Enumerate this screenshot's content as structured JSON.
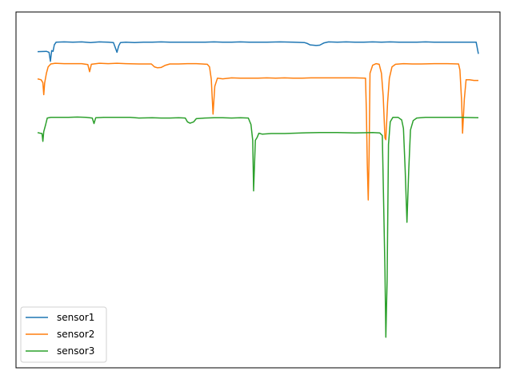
{
  "chart_data": {
    "type": "line",
    "title": "",
    "xlabel": "",
    "ylabel": "",
    "grid": false,
    "axes_visible": false,
    "legend_position": "lower-left",
    "xlim": [
      0,
      1000
    ],
    "ylim": [
      0,
      1000
    ],
    "series": [
      {
        "name": "sensor1",
        "color": "#1f77b4",
        "points": [
          [
            0,
            927
          ],
          [
            20,
            928
          ],
          [
            26,
            925
          ],
          [
            29,
            897
          ],
          [
            32,
            930
          ],
          [
            35,
            928
          ],
          [
            38,
            948
          ],
          [
            42,
            956
          ],
          [
            60,
            957
          ],
          [
            80,
            956
          ],
          [
            100,
            957
          ],
          [
            120,
            955
          ],
          [
            140,
            957
          ],
          [
            160,
            956
          ],
          [
            172,
            955
          ],
          [
            176,
            940
          ],
          [
            180,
            925
          ],
          [
            184,
            945
          ],
          [
            188,
            955
          ],
          [
            200,
            956
          ],
          [
            220,
            955
          ],
          [
            240,
            956
          ],
          [
            260,
            956
          ],
          [
            280,
            957
          ],
          [
            300,
            956
          ],
          [
            320,
            956
          ],
          [
            340,
            956
          ],
          [
            360,
            956
          ],
          [
            380,
            956
          ],
          [
            400,
            957
          ],
          [
            420,
            956
          ],
          [
            440,
            956
          ],
          [
            460,
            957
          ],
          [
            480,
            956
          ],
          [
            500,
            956
          ],
          [
            520,
            956
          ],
          [
            550,
            957
          ],
          [
            580,
            956
          ],
          [
            605,
            955
          ],
          [
            612,
            952
          ],
          [
            618,
            948
          ],
          [
            625,
            947
          ],
          [
            632,
            946
          ],
          [
            640,
            947
          ],
          [
            650,
            954
          ],
          [
            660,
            957
          ],
          [
            680,
            956
          ],
          [
            700,
            957
          ],
          [
            720,
            956
          ],
          [
            740,
            956
          ],
          [
            760,
            957
          ],
          [
            780,
            956
          ],
          [
            800,
            957
          ],
          [
            820,
            956
          ],
          [
            840,
            956
          ],
          [
            860,
            956
          ],
          [
            880,
            957
          ],
          [
            900,
            956
          ],
          [
            940,
            956
          ],
          [
            995,
            956
          ],
          [
            1000,
            920
          ]
        ]
      },
      {
        "name": "sensor2",
        "color": "#ff7f0e",
        "points": [
          [
            0,
            843
          ],
          [
            8,
            840
          ],
          [
            12,
            831
          ],
          [
            14,
            794
          ],
          [
            16,
            830
          ],
          [
            20,
            860
          ],
          [
            24,
            880
          ],
          [
            30,
            889
          ],
          [
            40,
            891
          ],
          [
            60,
            890
          ],
          [
            80,
            890
          ],
          [
            100,
            890
          ],
          [
            114,
            887
          ],
          [
            118,
            865
          ],
          [
            122,
            888
          ],
          [
            140,
            891
          ],
          [
            160,
            890
          ],
          [
            180,
            891
          ],
          [
            200,
            890
          ],
          [
            230,
            889
          ],
          [
            258,
            889
          ],
          [
            265,
            880
          ],
          [
            272,
            877
          ],
          [
            280,
            878
          ],
          [
            290,
            885
          ],
          [
            300,
            889
          ],
          [
            320,
            889
          ],
          [
            340,
            890
          ],
          [
            360,
            890
          ],
          [
            385,
            888
          ],
          [
            390,
            880
          ],
          [
            394,
            842
          ],
          [
            398,
            734
          ],
          [
            402,
            820
          ],
          [
            408,
            845
          ],
          [
            420,
            843
          ],
          [
            440,
            846
          ],
          [
            460,
            845
          ],
          [
            480,
            845
          ],
          [
            500,
            845
          ],
          [
            520,
            846
          ],
          [
            540,
            845
          ],
          [
            560,
            846
          ],
          [
            580,
            845
          ],
          [
            600,
            845
          ],
          [
            620,
            846
          ],
          [
            640,
            846
          ],
          [
            660,
            846
          ],
          [
            680,
            846
          ],
          [
            700,
            846
          ],
          [
            720,
            846
          ],
          [
            744,
            845
          ],
          [
            746,
            740
          ],
          [
            748,
            580
          ],
          [
            750,
            469
          ],
          [
            752,
            610
          ],
          [
            754,
            860
          ],
          [
            760,
            885
          ],
          [
            768,
            890
          ],
          [
            775,
            888
          ],
          [
            780,
            860
          ],
          [
            784,
            790
          ],
          [
            788,
            660
          ],
          [
            790,
            655
          ],
          [
            794,
            770
          ],
          [
            798,
            845
          ],
          [
            804,
            880
          ],
          [
            812,
            888
          ],
          [
            830,
            890
          ],
          [
            850,
            889
          ],
          [
            870,
            889
          ],
          [
            900,
            890
          ],
          [
            930,
            890
          ],
          [
            955,
            889
          ],
          [
            958,
            870
          ],
          [
            962,
            770
          ],
          [
            964,
            675
          ],
          [
            968,
            780
          ],
          [
            972,
            840
          ],
          [
            980,
            840
          ],
          [
            990,
            838
          ],
          [
            1000,
            838
          ]
        ]
      },
      {
        "name": "sensor3",
        "color": "#2ca02c",
        "points": [
          [
            0,
            677
          ],
          [
            6,
            675
          ],
          [
            10,
            674
          ],
          [
            12,
            650
          ],
          [
            14,
            680
          ],
          [
            18,
            700
          ],
          [
            22,
            722
          ],
          [
            30,
            724
          ],
          [
            50,
            724
          ],
          [
            70,
            724
          ],
          [
            90,
            725
          ],
          [
            110,
            724
          ],
          [
            124,
            722
          ],
          [
            128,
            705
          ],
          [
            132,
            723
          ],
          [
            150,
            724
          ],
          [
            170,
            724
          ],
          [
            190,
            724
          ],
          [
            210,
            724
          ],
          [
            230,
            722
          ],
          [
            260,
            723
          ],
          [
            280,
            722
          ],
          [
            300,
            722
          ],
          [
            320,
            723
          ],
          [
            335,
            722
          ],
          [
            340,
            710
          ],
          [
            346,
            706
          ],
          [
            354,
            710
          ],
          [
            360,
            720
          ],
          [
            380,
            722
          ],
          [
            400,
            723
          ],
          [
            420,
            723
          ],
          [
            440,
            722
          ],
          [
            460,
            723
          ],
          [
            478,
            722
          ],
          [
            484,
            702
          ],
          [
            488,
            653
          ],
          [
            490,
            497
          ],
          [
            494,
            653
          ],
          [
            498,
            662
          ],
          [
            502,
            675
          ],
          [
            510,
            672
          ],
          [
            530,
            674
          ],
          [
            560,
            674
          ],
          [
            600,
            676
          ],
          [
            640,
            677
          ],
          [
            680,
            677
          ],
          [
            720,
            676
          ],
          [
            760,
            677
          ],
          [
            776,
            676
          ],
          [
            782,
            668
          ],
          [
            788,
            250
          ],
          [
            790,
            45
          ],
          [
            793,
            220
          ],
          [
            796,
            640
          ],
          [
            800,
            710
          ],
          [
            806,
            724
          ],
          [
            818,
            724
          ],
          [
            826,
            716
          ],
          [
            830,
            690
          ],
          [
            834,
            560
          ],
          [
            838,
            400
          ],
          [
            842,
            560
          ],
          [
            846,
            685
          ],
          [
            852,
            714
          ],
          [
            860,
            722
          ],
          [
            880,
            724
          ],
          [
            900,
            724
          ],
          [
            930,
            724
          ],
          [
            960,
            724
          ],
          [
            1000,
            723
          ]
        ]
      }
    ]
  }
}
